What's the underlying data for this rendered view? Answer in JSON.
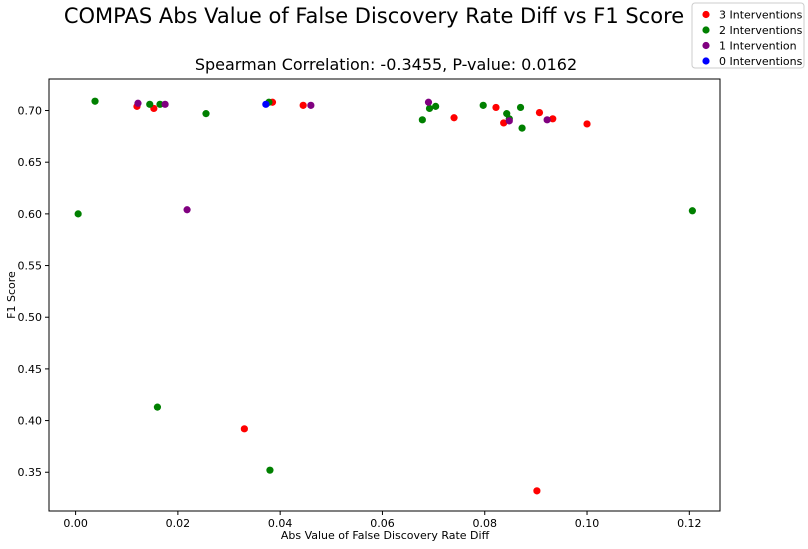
{
  "chart_data": {
    "type": "scatter",
    "title": "COMPAS Abs Value of False Discovery Rate Diff vs F1 Score",
    "subtitle": "Spearman Correlation: -0.3455, P-value: 0.0162",
    "xlabel": "Abs Value of False Discovery Rate Diff",
    "ylabel": "F1 Score",
    "xlim": [
      -0.0052,
      0.126
    ],
    "ylim": [
      0.3125,
      0.7305
    ],
    "xticks": [
      "0.00",
      "0.02",
      "0.04",
      "0.06",
      "0.08",
      "0.10",
      "0.12"
    ],
    "yticks": [
      "0.35",
      "0.40",
      "0.45",
      "0.50",
      "0.55",
      "0.60",
      "0.65",
      "0.70"
    ],
    "grid": false,
    "legend_position": "top-right",
    "series": [
      {
        "name": "3 Interventions",
        "color": "#ff0000",
        "points": [
          {
            "x": 0.012,
            "y": 0.704
          },
          {
            "x": 0.0153,
            "y": 0.702
          },
          {
            "x": 0.033,
            "y": 0.392
          },
          {
            "x": 0.0385,
            "y": 0.708
          },
          {
            "x": 0.0445,
            "y": 0.705
          },
          {
            "x": 0.074,
            "y": 0.693
          },
          {
            "x": 0.0822,
            "y": 0.703
          },
          {
            "x": 0.0837,
            "y": 0.688
          },
          {
            "x": 0.0907,
            "y": 0.698
          },
          {
            "x": 0.0933,
            "y": 0.692
          },
          {
            "x": 0.1,
            "y": 0.687
          },
          {
            "x": 0.0902,
            "y": 0.332
          }
        ]
      },
      {
        "name": "2 Interventions",
        "color": "#008000",
        "points": [
          {
            "x": 0.0005,
            "y": 0.6
          },
          {
            "x": 0.0038,
            "y": 0.709
          },
          {
            "x": 0.0145,
            "y": 0.706
          },
          {
            "x": 0.0165,
            "y": 0.706
          },
          {
            "x": 0.016,
            "y": 0.413
          },
          {
            "x": 0.0255,
            "y": 0.697
          },
          {
            "x": 0.038,
            "y": 0.352
          },
          {
            "x": 0.0378,
            "y": 0.708
          },
          {
            "x": 0.0678,
            "y": 0.691
          },
          {
            "x": 0.0692,
            "y": 0.702
          },
          {
            "x": 0.0704,
            "y": 0.704
          },
          {
            "x": 0.0797,
            "y": 0.705
          },
          {
            "x": 0.0843,
            "y": 0.697
          },
          {
            "x": 0.0848,
            "y": 0.692
          },
          {
            "x": 0.087,
            "y": 0.703
          },
          {
            "x": 0.0873,
            "y": 0.683
          },
          {
            "x": 0.1206,
            "y": 0.603
          }
        ]
      },
      {
        "name": "1 Intervention",
        "color": "#800080",
        "points": [
          {
            "x": 0.0122,
            "y": 0.707
          },
          {
            "x": 0.0175,
            "y": 0.706
          },
          {
            "x": 0.0218,
            "y": 0.604
          },
          {
            "x": 0.046,
            "y": 0.705
          },
          {
            "x": 0.069,
            "y": 0.708
          },
          {
            "x": 0.0848,
            "y": 0.69
          },
          {
            "x": 0.0922,
            "y": 0.691
          }
        ]
      },
      {
        "name": "0 Interventions",
        "color": "#0000ff",
        "points": [
          {
            "x": 0.0372,
            "y": 0.706
          }
        ]
      }
    ]
  }
}
